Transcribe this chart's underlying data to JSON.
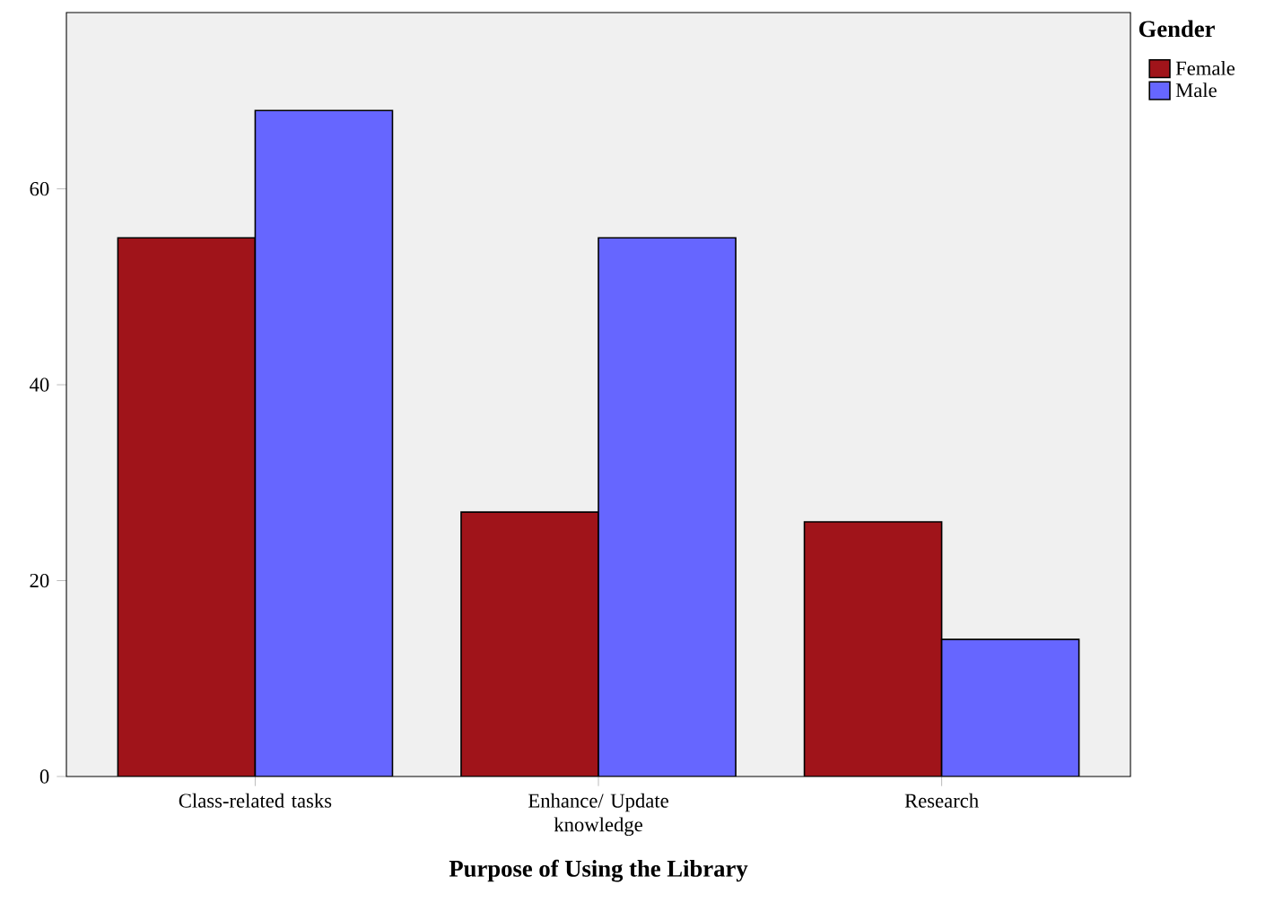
{
  "chart_data": {
    "type": "bar",
    "xlabel": "Purpose of Using the Library",
    "legend_title": "Gender",
    "categories": [
      "Class-related tasks",
      "Enhance/ Update knowledge",
      "Research"
    ],
    "series": [
      {
        "name": "Female",
        "color": "#a0141a",
        "values": [
          55,
          27,
          26
        ]
      },
      {
        "name": "Male",
        "color": "#6666ff",
        "values": [
          68,
          55,
          14
        ]
      }
    ],
    "ylim": [
      0,
      78
    ],
    "yticks": [
      0,
      20,
      40,
      60
    ],
    "grid": false,
    "legend": "right"
  }
}
